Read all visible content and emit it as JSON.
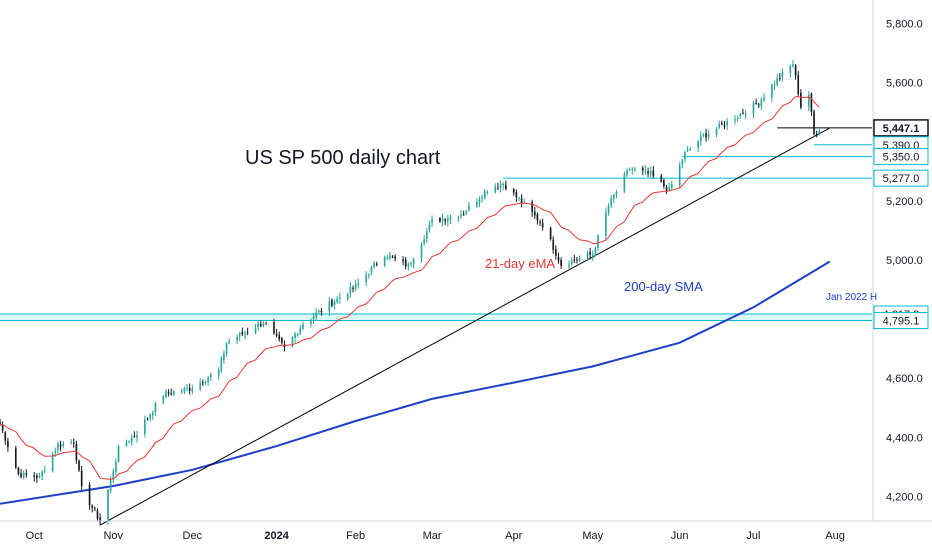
{
  "chart_data": {
    "type": "candlestick",
    "title": "US SP 500 daily chart",
    "y_ticks": [
      "5,800.0",
      "5,600.0",
      "5,200.0",
      "5,000.0",
      "4,600.0",
      "4,400.0",
      "4,200.0"
    ],
    "y_tick_values": [
      5800,
      5600,
      5200,
      5000,
      4600,
      4400,
      4200
    ],
    "x_ticks": [
      "Oct",
      "Nov",
      "Dec",
      "2024",
      "Feb",
      "Mar",
      "Apr",
      "May",
      "Jun",
      "Jul",
      "Aug"
    ],
    "x_tick_dates": [
      "2023-10-02",
      "2023-11-01",
      "2023-12-01",
      "2024-01-02",
      "2024-02-01",
      "2024-03-01",
      "2024-04-01",
      "2024-05-01",
      "2024-06-03",
      "2024-07-01",
      "2024-08-01"
    ],
    "ylim": [
      4120,
      5880
    ],
    "date_range": [
      "2023-09-19",
      "2024-08-15"
    ],
    "price_tags": [
      {
        "label": "5,447.1",
        "value": 5447.1,
        "style": "current"
      },
      {
        "label": "5,390.0",
        "value": 5390.0,
        "style": "level"
      },
      {
        "label": "5,350.0",
        "value": 5350.0,
        "style": "level"
      },
      {
        "label": "5,277.0",
        "value": 5277.0,
        "style": "level"
      },
      {
        "label": "4,817.2",
        "value": 4817.2,
        "style": "level"
      },
      {
        "label": "4,795.1",
        "value": 4795.1,
        "style": "level"
      }
    ],
    "horizontal_levels": [
      {
        "value": 5447.1,
        "start": "2024-07-10",
        "color": "#000000"
      },
      {
        "value": 5390.0,
        "start": "2024-07-24",
        "color": "#00bcd4"
      },
      {
        "value": 5350.0,
        "start": "2024-06-04",
        "color": "#00bcd4"
      },
      {
        "value": 5277.0,
        "start": "2024-03-28",
        "color": "#00bcd4"
      },
      {
        "value": 4817.2,
        "start": "2023-09-19",
        "color": "#00bcd4"
      },
      {
        "value": 4795.1,
        "start": "2023-09-19",
        "color": "#00bcd4"
      }
    ],
    "trendline": {
      "from": {
        "date": "2023-10-27",
        "value": 4103
      },
      "to": {
        "date": "2024-07-30",
        "value": 5447
      },
      "color": "#000000"
    },
    "annotations": [
      {
        "text": "21-day eMA",
        "style": "red"
      },
      {
        "text": "200-day SMA",
        "style": "blue"
      },
      {
        "text": "Jan 2022 H",
        "style": "small-blue"
      }
    ],
    "anchors": [
      {
        "date": "2023-09-19",
        "value": 4445
      },
      {
        "date": "2023-09-26",
        "value": 4275
      },
      {
        "date": "2023-10-04",
        "value": 4265
      },
      {
        "date": "2023-10-11",
        "value": 4375
      },
      {
        "date": "2023-10-17",
        "value": 4385
      },
      {
        "date": "2023-10-20",
        "value": 4225
      },
      {
        "date": "2023-10-27",
        "value": 4115
      },
      {
        "date": "2023-11-03",
        "value": 4360
      },
      {
        "date": "2023-11-10",
        "value": 4415
      },
      {
        "date": "2023-11-20",
        "value": 4545
      },
      {
        "date": "2023-11-30",
        "value": 4565
      },
      {
        "date": "2023-12-11",
        "value": 4625
      },
      {
        "date": "2023-12-14",
        "value": 4720
      },
      {
        "date": "2023-12-22",
        "value": 4760
      },
      {
        "date": "2023-12-28",
        "value": 4790
      },
      {
        "date": "2024-01-05",
        "value": 4700
      },
      {
        "date": "2024-01-12",
        "value": 4785
      },
      {
        "date": "2024-01-22",
        "value": 4850
      },
      {
        "date": "2024-02-01",
        "value": 4910
      },
      {
        "date": "2024-02-12",
        "value": 5020
      },
      {
        "date": "2024-02-21",
        "value": 4980
      },
      {
        "date": "2024-03-01",
        "value": 5130
      },
      {
        "date": "2024-03-13",
        "value": 5160
      },
      {
        "date": "2024-03-22",
        "value": 5240
      },
      {
        "date": "2024-03-28",
        "value": 5260
      },
      {
        "date": "2024-04-12",
        "value": 5120
      },
      {
        "date": "2024-04-19",
        "value": 4985
      },
      {
        "date": "2024-05-01",
        "value": 5020
      },
      {
        "date": "2024-05-07",
        "value": 5185
      },
      {
        "date": "2024-05-15",
        "value": 5310
      },
      {
        "date": "2024-05-23",
        "value": 5290
      },
      {
        "date": "2024-05-30",
        "value": 5235
      },
      {
        "date": "2024-06-05",
        "value": 5360
      },
      {
        "date": "2024-06-12",
        "value": 5420
      },
      {
        "date": "2024-06-21",
        "value": 5465
      },
      {
        "date": "2024-07-03",
        "value": 5535
      },
      {
        "date": "2024-07-10",
        "value": 5610
      },
      {
        "date": "2024-07-16",
        "value": 5665
      },
      {
        "date": "2024-07-19",
        "value": 5520
      },
      {
        "date": "2024-07-22",
        "value": 5560
      },
      {
        "date": "2024-07-24",
        "value": 5425
      },
      {
        "date": "2024-07-26",
        "value": 5445
      }
    ],
    "sma200": [
      {
        "date": "2023-09-19",
        "value": 4175
      },
      {
        "date": "2023-11-01",
        "value": 4235
      },
      {
        "date": "2023-12-01",
        "value": 4290
      },
      {
        "date": "2024-01-02",
        "value": 4370
      },
      {
        "date": "2024-02-01",
        "value": 4455
      },
      {
        "date": "2024-03-01",
        "value": 4530
      },
      {
        "date": "2024-04-01",
        "value": 4585
      },
      {
        "date": "2024-05-01",
        "value": 4640
      },
      {
        "date": "2024-06-03",
        "value": 4720
      },
      {
        "date": "2024-07-01",
        "value": 4840
      },
      {
        "date": "2024-07-30",
        "value": 4995
      }
    ],
    "colors": {
      "up": "#26a69a",
      "down": "#131722",
      "ema21": "#e53935",
      "sma200": "#1e40c8",
      "level": "#00bcd4",
      "zone": "#e0f7fa"
    }
  }
}
